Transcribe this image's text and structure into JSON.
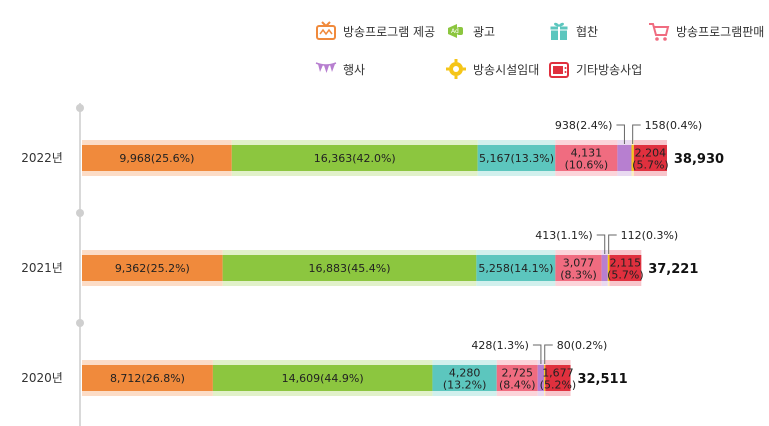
{
  "chart_data": {
    "type": "bar",
    "orientation": "horizontal",
    "stacked": true,
    "categories": [
      "2022년",
      "2021년",
      "2020년"
    ],
    "totals": [
      "38,930",
      "37,221",
      "32,511"
    ],
    "series": [
      {
        "name": "방송프로그램 제공",
        "color": "#F08A3C",
        "icon": "tv-icon",
        "values": [
          9968,
          9362,
          8712
        ],
        "labels": [
          "9,968(25.6%)",
          "9,362(25.2%)",
          "8,712(26.8%)"
        ]
      },
      {
        "name": "광고",
        "color": "#8CC63F",
        "icon": "ad-megaphone-icon",
        "values": [
          16363,
          16883,
          14609
        ],
        "labels": [
          "16,363(42.0%)",
          "16,883(45.4%)",
          "14,609(44.9%)"
        ]
      },
      {
        "name": "협찬",
        "color": "#5CC6BE",
        "icon": "gift-icon",
        "values": [
          5167,
          5258,
          4280
        ],
        "labels": [
          "5,167(13.3%)",
          "5,258(14.1%)",
          "4,280\n(13.2%)"
        ]
      },
      {
        "name": "방송프로그램판매",
        "color": "#F06C80",
        "icon": "cart-icon",
        "values": [
          4131,
          3077,
          2725
        ],
        "labels": [
          "4,131\n(10.6%)",
          "3,077\n(8.3%)",
          "2,725\n(8.4%)"
        ]
      },
      {
        "name": "행사",
        "color": "#B77FD0",
        "icon": "bunting-flag-icon",
        "values": [
          938,
          413,
          428
        ],
        "labels": [
          "938(2.4%)",
          "413(1.1%)",
          "428(1.3%)"
        ]
      },
      {
        "name": "방송시설임대",
        "color": "#F5C518",
        "icon": "gear-icon",
        "values": [
          158,
          112,
          80
        ],
        "labels": [
          "158(0.4%)",
          "112(0.3%)",
          "80(0.2%)"
        ]
      },
      {
        "name": "기타방송사업",
        "color": "#E0303E",
        "icon": "broadcast-tv-icon",
        "values": [
          2204,
          2115,
          1677
        ],
        "labels": [
          "2,204\n(5.7%)",
          "2,115\n(5.7%)",
          "1,677\n(5.2%)"
        ]
      }
    ],
    "callout_series": [
      4,
      5
    ],
    "xlim": [
      0,
      45000
    ],
    "legend_position": "top-right",
    "grid": false
  }
}
